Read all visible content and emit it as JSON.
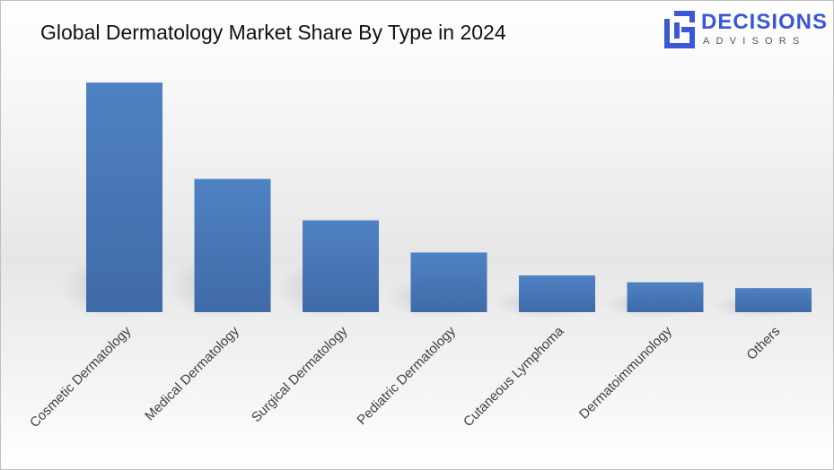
{
  "title": "Global Dermatology Market Share By Type in 2024",
  "logo": {
    "name": "DECISIONS",
    "tagline": "ADVISORS",
    "icon": "decisions-logo-mark-icon",
    "color": "#3b57d6"
  },
  "chart_data": {
    "type": "bar",
    "title": "Global Dermatology Market Share By Type in 2024",
    "categories": [
      "Cosmetic Dermatology",
      "Medical Dermatology",
      "Surgical Dermatology",
      "Pediatric Dermatology",
      "Cutaneous Lymphoma",
      "Dermatoimmunology",
      "Others"
    ],
    "values": [
      100,
      58,
      40,
      26,
      16,
      13,
      10.5
    ],
    "xlabel": "",
    "ylabel": "",
    "ylim": [
      0,
      100
    ],
    "grid": false,
    "legend": "none",
    "bar_color": "#4a78b8"
  }
}
